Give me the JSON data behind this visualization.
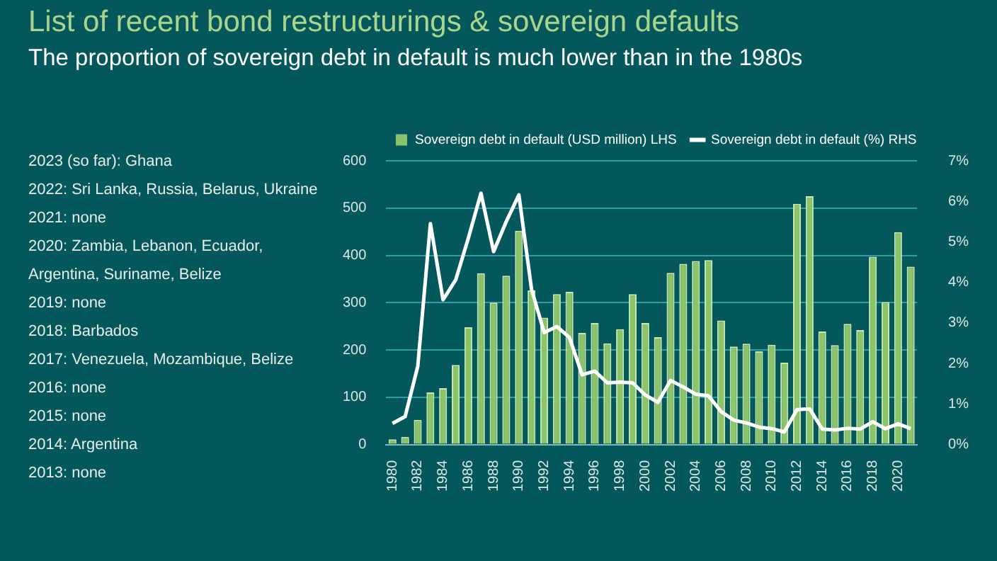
{
  "chart_data": {
    "type": "bar",
    "title": "List of recent bond restructurings & sovereign defaults",
    "subtitle": "The proportion of sovereign debt in default is much lower than in the 1980s",
    "categories": [
      "1980",
      null,
      "1982",
      null,
      "1984",
      null,
      "1986",
      null,
      "1988",
      null,
      "1990",
      null,
      "1992",
      null,
      "1994",
      null,
      "1996",
      null,
      "1998",
      null,
      "2000",
      null,
      "2002",
      null,
      "2004",
      null,
      "2006",
      null,
      "2008",
      null,
      "2010",
      null,
      "2012",
      null,
      "2014",
      null,
      "2016",
      null,
      "2018",
      null,
      "2020",
      null
    ],
    "series": [
      {
        "name": "Sovereign debt in default (USD million) LHS",
        "color": "#8cc46a",
        "values": [
          11,
          16,
          52,
          110,
          119,
          168,
          248,
          362,
          300,
          357,
          452,
          326,
          268,
          318,
          323,
          236,
          257,
          214,
          244,
          318,
          257,
          227,
          363,
          382,
          388,
          390,
          262,
          207,
          213,
          197,
          211,
          173,
          509,
          525,
          239,
          210,
          255,
          242,
          397,
          301,
          449,
          376
        ]
      },
      {
        "name": "Sovereign debt in default (%) RHS",
        "type": "line",
        "axis": "y2",
        "color": "#ffffff",
        "values": [
          0.52,
          0.69,
          1.93,
          5.45,
          3.57,
          4.06,
          5.09,
          6.2,
          4.76,
          5.5,
          6.16,
          3.83,
          2.76,
          2.91,
          2.64,
          1.72,
          1.81,
          1.52,
          1.54,
          1.52,
          1.22,
          1.04,
          1.58,
          1.42,
          1.24,
          1.2,
          0.81,
          0.6,
          0.53,
          0.43,
          0.39,
          0.31,
          0.86,
          0.88,
          0.38,
          0.36,
          0.4,
          0.38,
          0.56,
          0.39,
          0.51,
          0.39
        ]
      }
    ],
    "ylim": [
      0,
      600
    ],
    "yticks": [
      0,
      100,
      200,
      300,
      400,
      500,
      600
    ],
    "y2lim": [
      0,
      7
    ],
    "y2ticks": [
      {
        "value": 0,
        "label": "0%"
      },
      {
        "value": 1,
        "label": "1%"
      },
      {
        "value": 2,
        "label": "2%"
      },
      {
        "value": 3,
        "label": "3%"
      },
      {
        "value": 4,
        "label": "4%"
      },
      {
        "value": 5,
        "label": "5%"
      },
      {
        "value": 6,
        "label": "6%"
      },
      {
        "value": 7,
        "label": "7%"
      }
    ],
    "grid": "y",
    "legend": "top",
    "marker": "none",
    "line_style": "solid",
    "annotations": [
      "2023 (so far): Ghana",
      "2022: Sri Lanka, Russia, Belarus,  Ukraine",
      "2021: none",
      "2020: Zambia, Lebanon,  Ecuador, Argentina, Suriname, Belize",
      "2019: none",
      "2018: Barbados",
      "2017: Venezuela,  Mozambique, Belize",
      "2016: none",
      "2015: none",
      "2014: Argentina",
      "2013: none"
    ]
  }
}
